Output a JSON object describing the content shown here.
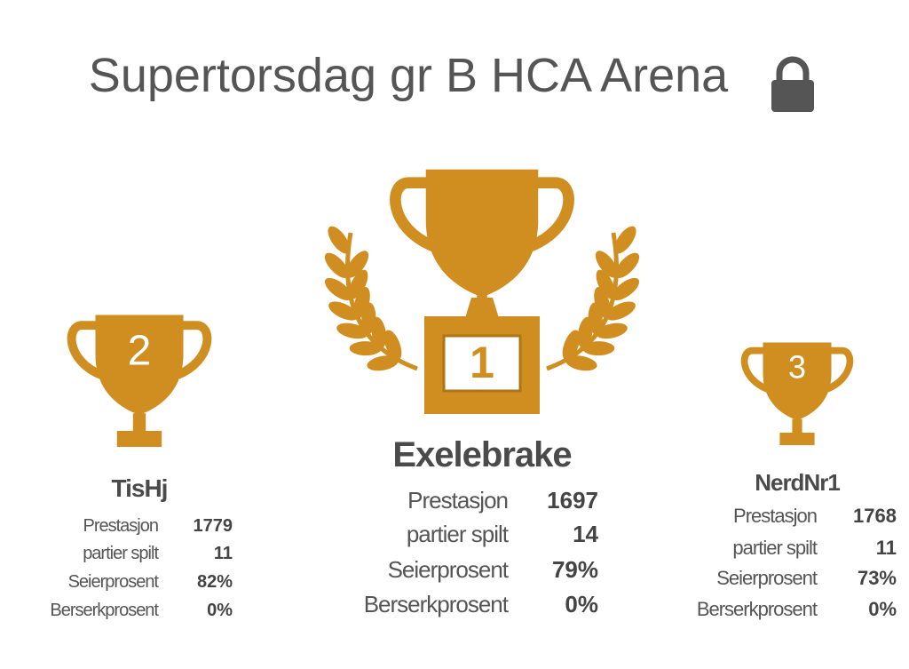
{
  "header": {
    "title": "Supertorsdag gr B HCA Arena"
  },
  "podium": [
    {
      "rank": "2",
      "name": "TisHj",
      "stats": [
        {
          "label": "Prestasjon",
          "value": "1779"
        },
        {
          "label": "partier spilt",
          "value": "11"
        },
        {
          "label": "Seierprosent",
          "value": "82%"
        },
        {
          "label": "Berserkprosent",
          "value": "0%"
        }
      ]
    },
    {
      "rank": "1",
      "name": "Exelebrake",
      "stats": [
        {
          "label": "Prestasjon",
          "value": "1697"
        },
        {
          "label": "partier spilt",
          "value": "14"
        },
        {
          "label": "Seierprosent",
          "value": "79%"
        },
        {
          "label": "Berserkprosent",
          "value": "0%"
        }
      ]
    },
    {
      "rank": "3",
      "name": "NerdNr1",
      "stats": [
        {
          "label": "Prestasjon",
          "value": "1768"
        },
        {
          "label": "partier spilt",
          "value": "11"
        },
        {
          "label": "Seierprosent",
          "value": "73%"
        },
        {
          "label": "Berserkprosent",
          "value": "0%"
        }
      ]
    }
  ]
}
